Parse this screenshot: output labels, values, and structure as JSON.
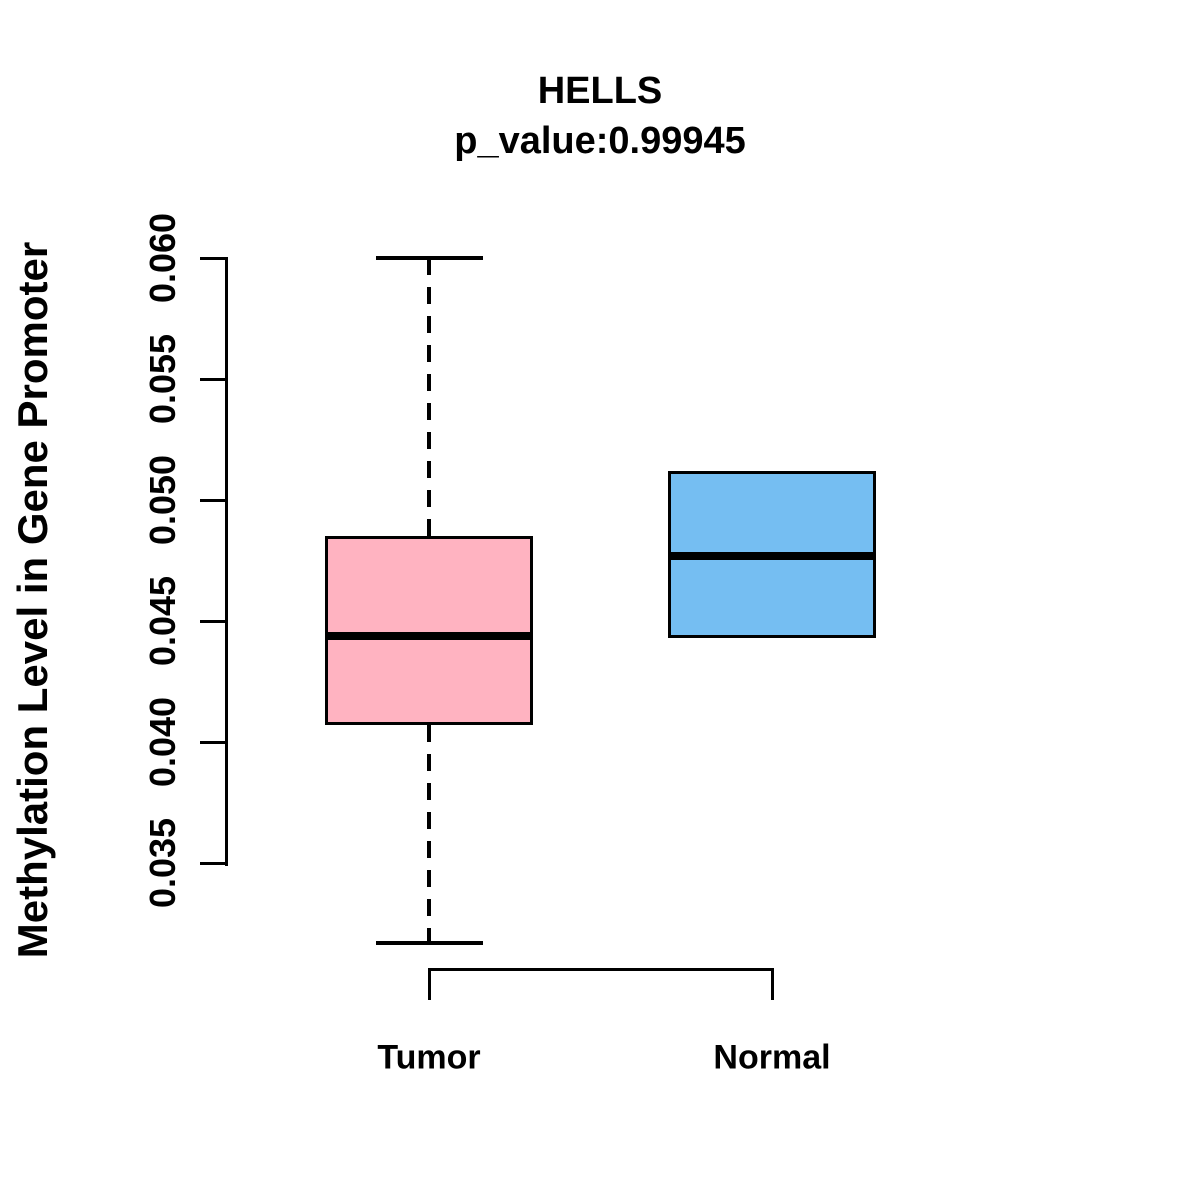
{
  "title": "HELLS",
  "subtitle": "p_value:0.99945",
  "chart_data": {
    "type": "boxplot",
    "title": "HELLS",
    "subtitle": "p_value:0.99945",
    "ylabel": "Methylation Level in Gene Promoter",
    "xlabel": "",
    "ylim": [
      0.035,
      0.06
    ],
    "yticks": [
      0.035,
      0.04,
      0.045,
      0.05,
      0.055,
      0.06
    ],
    "ytick_labels": [
      "0.035",
      "0.040",
      "0.045",
      "0.050",
      "0.055",
      "0.060"
    ],
    "grid": "off",
    "legend": "none",
    "categories": [
      "Tumor",
      "Normal"
    ],
    "series": [
      {
        "name": "Tumor",
        "color": "#FFB3C1",
        "whisker_low": 0.0317,
        "q1": 0.0407,
        "median": 0.0444,
        "q3": 0.0485,
        "whisker_high": 0.06,
        "outliers": []
      },
      {
        "name": "Normal",
        "color": "#75BEF2",
        "whisker_low": null,
        "q1": 0.0443,
        "median": 0.0477,
        "q3": 0.0512,
        "whisker_high": null,
        "outliers": []
      }
    ]
  },
  "colors": {
    "tumor_fill": "#FFB3C1",
    "normal_fill": "#75BEF2",
    "line": "#000000",
    "background": "#FFFFFF"
  }
}
